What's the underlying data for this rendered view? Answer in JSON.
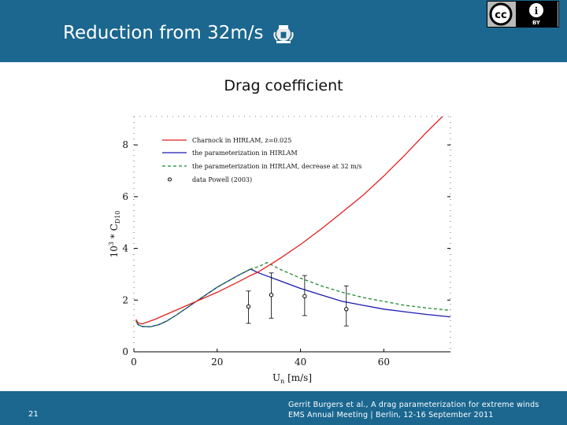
{
  "header": {
    "title": "Reduction from 32m/s",
    "license_badge": {
      "left": "cc",
      "right": "i",
      "sub": "BY"
    },
    "crest_icon": "royal-crest-icon"
  },
  "footer": {
    "slide_number": "21",
    "line1": "Gerrit Burgers et al., A drag parameterization for extreme winds",
    "line2": "EMS Annual Meeting | Berlin, 12-16 September 2011"
  },
  "colors": {
    "bar": "#1b6790",
    "charnock": "#e02020",
    "param": "#1a1ab0",
    "param_dec": "#1e8c2a"
  },
  "chart_data": {
    "type": "line",
    "title": "Drag coefficient",
    "xlabel": "U10 [m/s]",
    "xlabel_main": "U",
    "xlabel_sub": "n",
    "xlabel_unit": " [m/s]",
    "ylabel_main": "10",
    "ylabel_sup": "3",
    "ylabel_rest": " * C",
    "ylabel_sub": "D10",
    "xlim": [
      0,
      76
    ],
    "ylim": [
      0,
      9.1
    ],
    "xticks": [
      0,
      20,
      40,
      60
    ],
    "yticks": [
      0,
      2,
      4,
      6,
      8
    ],
    "series": [
      {
        "name": "Charnock in HIRLAM, z=0.025",
        "style": "solid",
        "x": [
          0.5,
          1,
          2,
          5,
          10,
          15,
          20,
          25,
          28,
          30,
          32,
          35,
          40,
          45,
          50,
          55,
          60,
          65,
          70,
          76
        ],
        "y": [
          1.25,
          1.12,
          1.08,
          1.25,
          1.6,
          1.95,
          2.3,
          2.7,
          2.95,
          3.1,
          3.3,
          3.6,
          4.15,
          4.75,
          5.4,
          6.05,
          6.8,
          7.6,
          8.45,
          9.4
        ]
      },
      {
        "name": "the parameterization in HIRLAM",
        "style": "solid",
        "x": [
          0.5,
          1,
          2,
          4,
          6,
          8,
          10,
          15,
          20,
          25,
          28,
          30,
          35,
          40,
          45,
          50,
          55,
          60,
          65,
          70,
          76
        ],
        "y": [
          1.2,
          1.05,
          0.98,
          0.97,
          1.05,
          1.2,
          1.4,
          1.95,
          2.5,
          2.95,
          3.2,
          3.05,
          2.75,
          2.45,
          2.2,
          1.95,
          1.8,
          1.65,
          1.55,
          1.45,
          1.35
        ]
      },
      {
        "name": "the parameterization in HIRLAM, decrease at 32 m/s",
        "style": "dashed",
        "x": [
          0.5,
          1,
          2,
          4,
          6,
          8,
          10,
          15,
          20,
          25,
          28,
          30,
          32,
          35,
          40,
          45,
          50,
          55,
          60,
          65,
          70,
          76
        ],
        "y": [
          1.2,
          1.05,
          0.98,
          0.97,
          1.05,
          1.2,
          1.4,
          1.95,
          2.5,
          2.95,
          3.2,
          3.3,
          3.45,
          3.2,
          2.85,
          2.55,
          2.3,
          2.1,
          1.95,
          1.8,
          1.7,
          1.6
        ]
      }
    ],
    "points": {
      "name": "data Powell (2003)",
      "x": [
        27.5,
        33,
        41,
        51
      ],
      "y": [
        1.75,
        2.2,
        2.15,
        1.65
      ],
      "err_low": [
        1.1,
        1.3,
        1.4,
        1.0
      ],
      "err_high": [
        2.35,
        3.05,
        2.95,
        2.55
      ]
    },
    "legend_position": "top-left"
  }
}
